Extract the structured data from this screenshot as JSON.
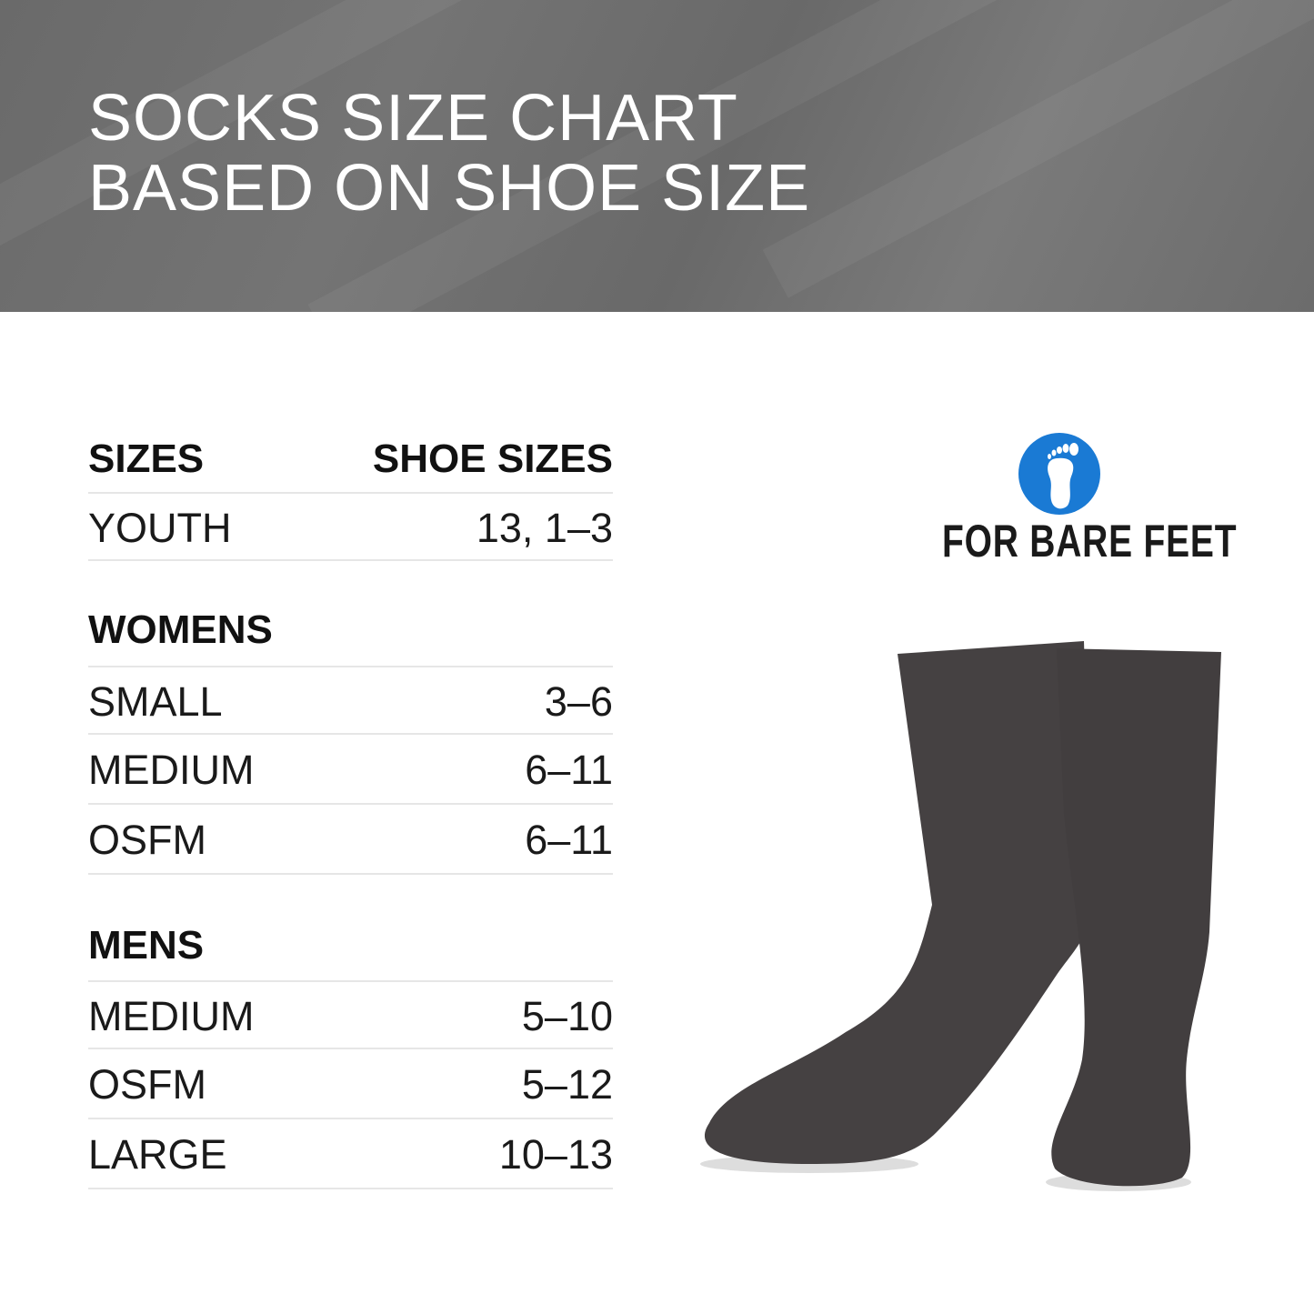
{
  "title": {
    "line1": "SOCKS SIZE CHART",
    "line2": "BASED ON SHOE SIZE"
  },
  "table": {
    "headers": {
      "size": "SIZES",
      "shoe": "SHOE SIZES"
    },
    "youth": {
      "size": "YOUTH",
      "shoe": "13, 1–3"
    },
    "womens": {
      "heading": "WOMENS",
      "rows": [
        {
          "size": "SMALL",
          "shoe": "3–6"
        },
        {
          "size": "MEDIUM",
          "shoe": "6–11"
        },
        {
          "size": "OSFM",
          "shoe": "6–11"
        }
      ]
    },
    "mens": {
      "heading": "MENS",
      "rows": [
        {
          "size": "MEDIUM",
          "shoe": "5–10"
        },
        {
          "size": "OSFM",
          "shoe": "5–12"
        },
        {
          "size": "LARGE",
          "shoe": "10–13"
        }
      ]
    }
  },
  "brand": {
    "name": "FOR BARE FEET",
    "icon": "foot-icon",
    "color": "#1a7ad4"
  },
  "colors": {
    "banner": "#6e6e6e",
    "sock": "#454142"
  }
}
